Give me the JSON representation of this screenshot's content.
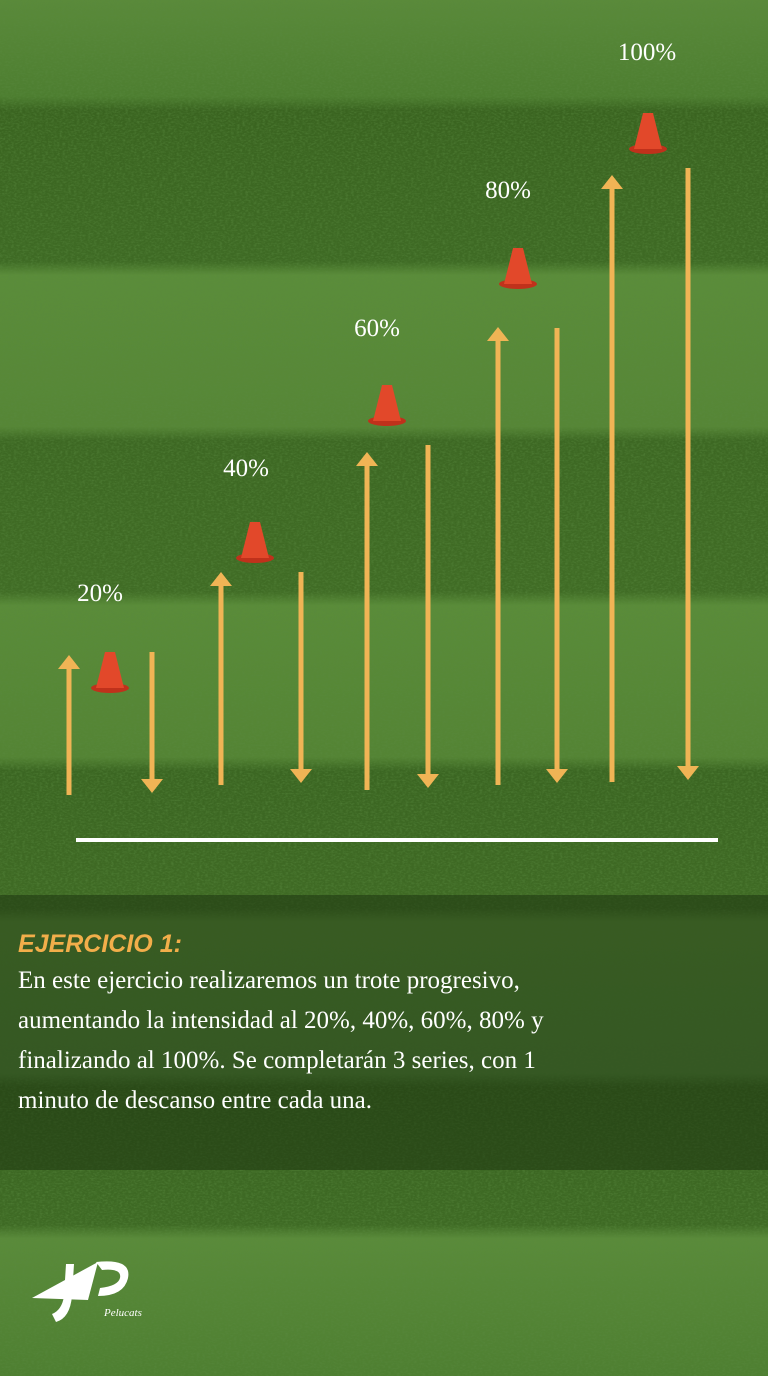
{
  "stages": [
    {
      "label": "20%"
    },
    {
      "label": "40%"
    },
    {
      "label": "60%"
    },
    {
      "label": "80%"
    },
    {
      "label": "100%"
    }
  ],
  "exercise": {
    "title": "EJERCICIO 1:",
    "lines": [
      "En este ejercicio realizaremos un trote progresivo,",
      "aumentando la intensidad al 20%, 40%, 60%, 80% y",
      "finalizando al 100%. Se completarán 3 series, con 1",
      "minuto de descanso entre cada una."
    ]
  },
  "logo": {
    "text": "Pelucats"
  }
}
